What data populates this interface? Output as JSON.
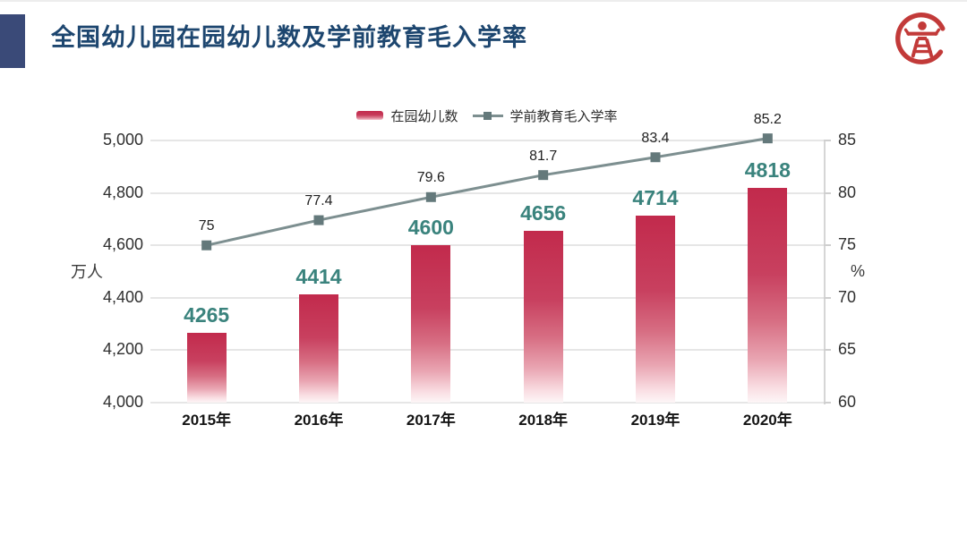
{
  "header": {
    "title": "全国幼儿园在园幼儿数及学前教育毛入学率"
  },
  "logo": {
    "meaning": "education-press-seal",
    "color": "#c23a39"
  },
  "colors": {
    "accent_navy": "#3a4a78",
    "title_blue": "#1d466f",
    "bar_red": "#c32b4d",
    "bar_label_teal": "#3a837d",
    "line_gray": "#7d8f90",
    "marker_gray": "#64797b",
    "gridline": "#e6e6e6"
  },
  "chart_data": {
    "type": "combo-bar-line",
    "title": "全国幼儿园在园幼儿数及学前教育毛入学率",
    "categories": [
      "2015年",
      "2016年",
      "2017年",
      "2018年",
      "2019年",
      "2020年"
    ],
    "series": [
      {
        "name": "在园幼儿数",
        "kind": "bar",
        "axis": "left",
        "values": [
          4265,
          4414,
          4600,
          4656,
          4714,
          4818
        ],
        "labels": [
          "4265",
          "4414",
          "4600",
          "4656",
          "4714",
          "4818"
        ],
        "color": "#c32b4d",
        "label_color": "#3a837d"
      },
      {
        "name": "学前教育毛入学率",
        "kind": "line",
        "axis": "right",
        "values": [
          75,
          77.4,
          79.6,
          81.7,
          83.4,
          85.2
        ],
        "labels": [
          "75",
          "77.4",
          "79.6",
          "81.7",
          "83.4",
          "85.2"
        ],
        "color": "#7d8f90",
        "marker_color": "#64797b",
        "label_color": "#1f1f1f"
      }
    ],
    "left_axis": {
      "unit": "万人",
      "min": 4000,
      "max": 5000,
      "ticks": [
        {
          "value": 5000,
          "label": "5,000"
        },
        {
          "value": 4800,
          "label": "4,800"
        },
        {
          "value": 4600,
          "label": "4,600"
        },
        {
          "value": 4400,
          "label": "4,400"
        },
        {
          "value": 4200,
          "label": "4,200"
        },
        {
          "value": 4000,
          "label": "4,000"
        }
      ]
    },
    "right_axis": {
      "unit": "%",
      "min": 60,
      "max": 85,
      "ticks": [
        {
          "value": 85,
          "label": "85"
        },
        {
          "value": 80,
          "label": "80"
        },
        {
          "value": 75,
          "label": "75"
        },
        {
          "value": 70,
          "label": "70"
        },
        {
          "value": 65,
          "label": "65"
        },
        {
          "value": 60,
          "label": "60"
        }
      ]
    },
    "legend_position": "top-center",
    "grid": true
  }
}
